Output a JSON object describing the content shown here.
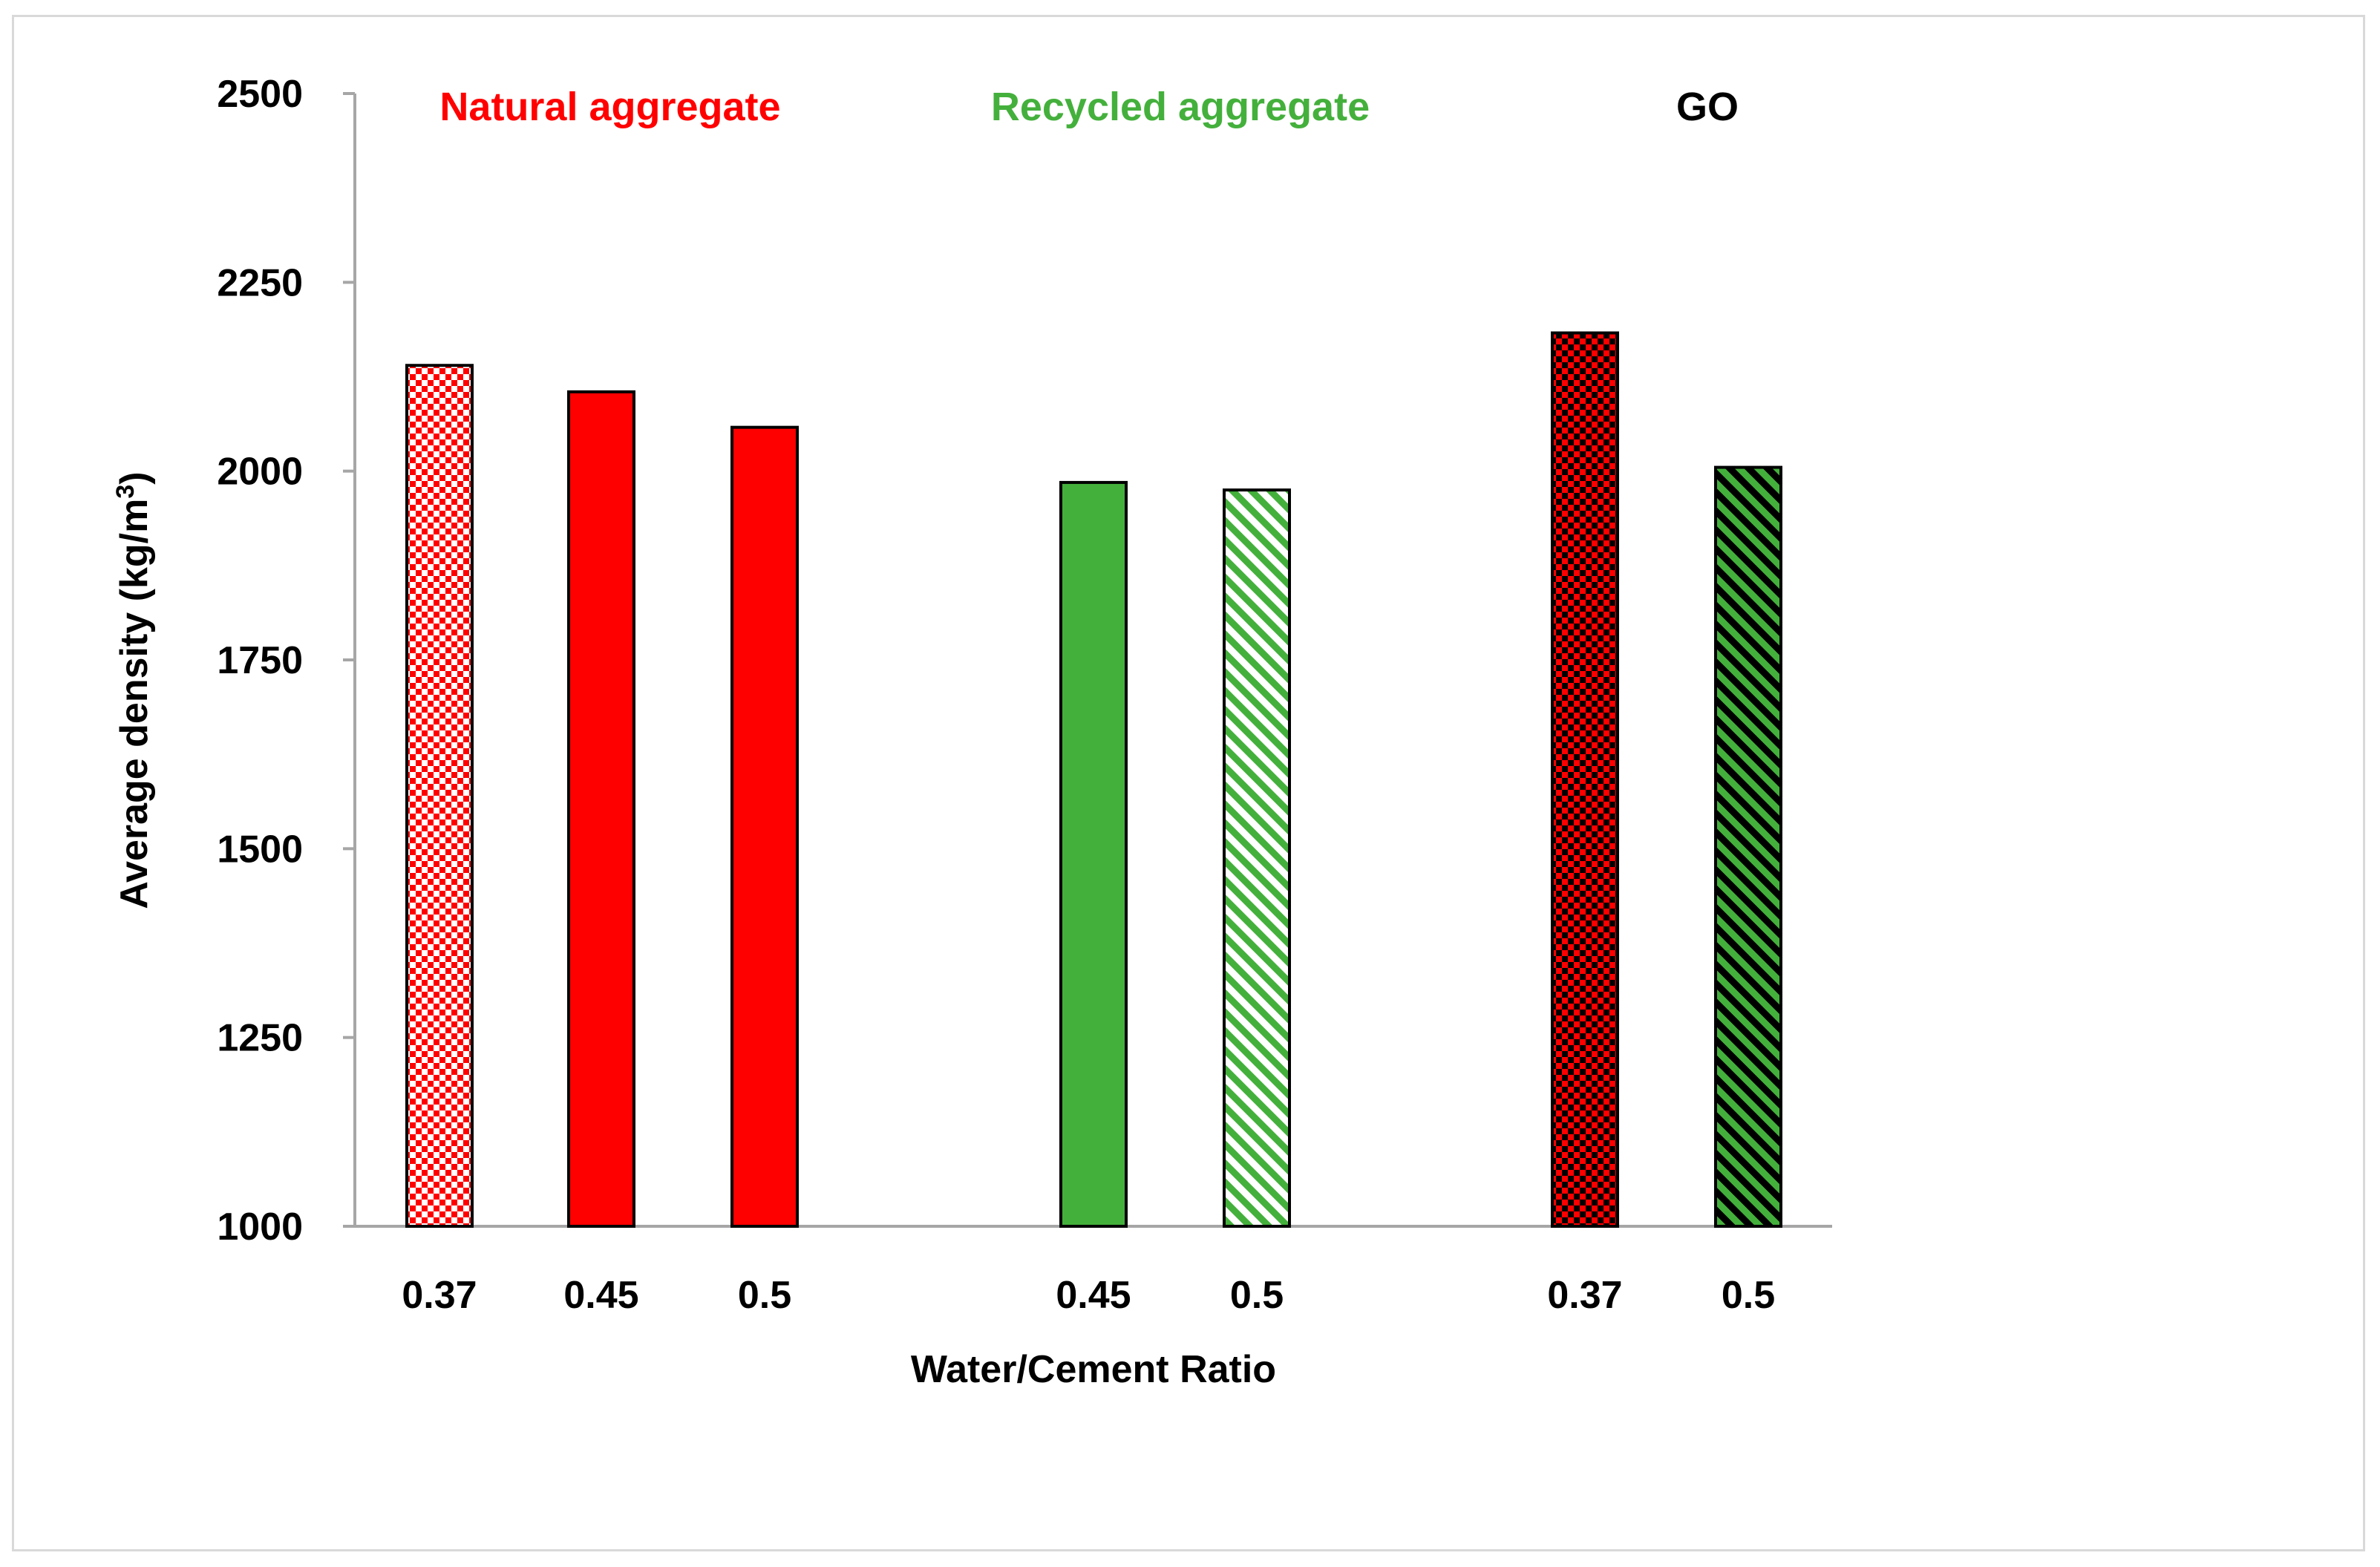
{
  "chart_data": {
    "type": "bar",
    "xlabel": "Water/Cement Ratio",
    "ylabel": "Average density (kg/m",
    "ylabel_superscript": "3",
    "ylabel_suffix": ")",
    "ylim": [
      1000,
      2500
    ],
    "yticks": [
      1000,
      1250,
      1500,
      1750,
      2000,
      2250,
      2500
    ],
    "grid": false,
    "groups": [
      {
        "label": "Natural aggregate",
        "color": "#ff0000"
      },
      {
        "label": "Recycled aggregate",
        "color": "#44b03c"
      },
      {
        "label": "GO",
        "color": "#000000"
      }
    ],
    "bars": [
      {
        "group": 0,
        "category": "0.37",
        "value": 2140,
        "fill": "checker-red-white"
      },
      {
        "group": 0,
        "category": "0.45",
        "value": 2105,
        "fill": "solid-red"
      },
      {
        "group": 0,
        "category": "0.5",
        "value": 2058,
        "fill": "solid-red"
      },
      {
        "group": 1,
        "category": "0.45",
        "value": 1985,
        "fill": "solid-green"
      },
      {
        "group": 1,
        "category": "0.5",
        "value": 1975,
        "fill": "stripe-green-white"
      },
      {
        "group": 2,
        "category": "0.37",
        "value": 2183,
        "fill": "checker-red-black"
      },
      {
        "group": 2,
        "category": "0.5",
        "value": 2005,
        "fill": "stripe-green-black"
      }
    ]
  }
}
